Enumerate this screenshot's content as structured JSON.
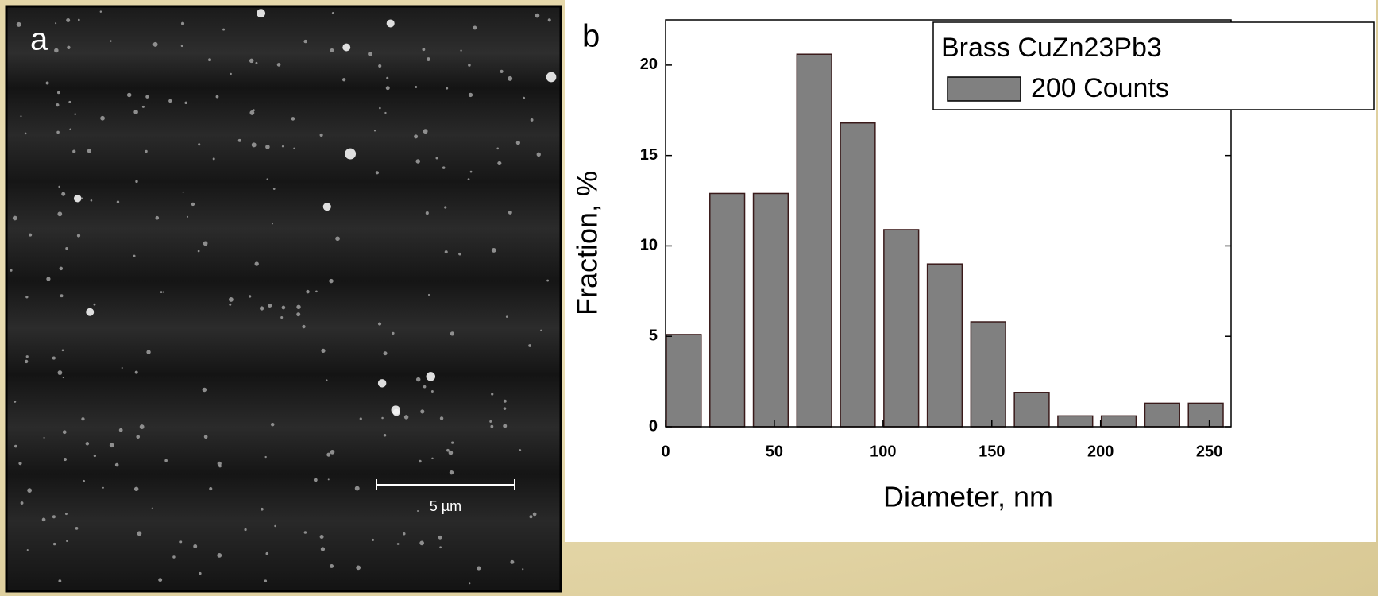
{
  "image_panel": {
    "label": "a",
    "scale_bar": "5 µm"
  },
  "chart_data": {
    "type": "histogram",
    "panel_label": "b",
    "legend_title": "Brass CuZn23Pb3",
    "x_label": "Diameter, nm",
    "y_label": "Fraction, %",
    "bins": [
      0,
      20,
      40,
      60,
      80,
      100,
      120,
      140,
      160,
      180,
      200,
      220,
      240,
      260
    ],
    "series": [
      {
        "name": "200 Counts",
        "color": "#808080",
        "values": [
          5.1,
          12.9,
          12.9,
          20.6,
          16.8,
          10.9,
          9.0,
          5.8,
          1.9,
          0.6,
          0.6,
          1.3,
          1.3
        ]
      }
    ],
    "xlim": [
      0,
      260
    ],
    "ylim": [
      0,
      22.5
    ],
    "xticks": [
      0,
      50,
      100,
      150,
      200,
      250
    ],
    "yticks": [
      0,
      5,
      10,
      15,
      20
    ]
  }
}
